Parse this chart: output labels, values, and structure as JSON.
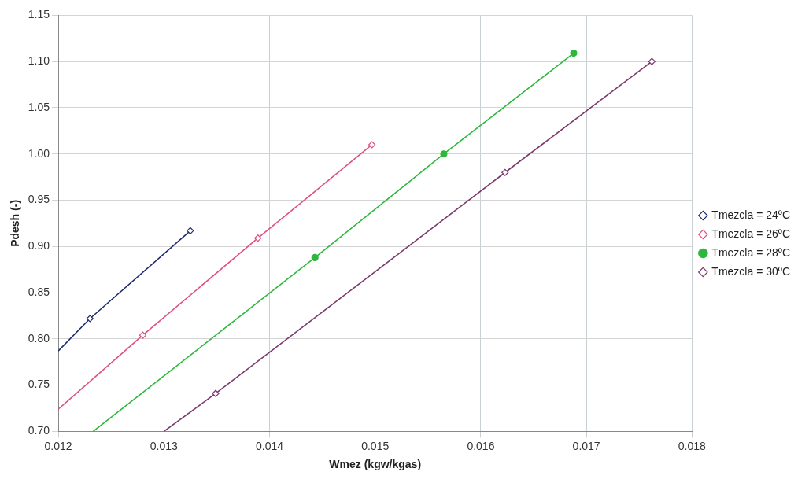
{
  "chart_data": {
    "type": "line",
    "xlabel": "Wmez (kgw/kgas)",
    "ylabel": "Pdesh (-)",
    "xlim": [
      0.012,
      0.018
    ],
    "xticks": [
      0.012,
      0.013,
      0.014,
      0.015,
      0.016,
      0.017,
      0.018
    ],
    "ylim": [
      0.7,
      1.15
    ],
    "yticks": [
      {
        "value": 0.7,
        "label": "0.70"
      },
      {
        "value": 0.75,
        "label": "0.75"
      },
      {
        "value": 0.8,
        "label": "0.80"
      },
      {
        "value": 0.85,
        "label": "0.85"
      },
      {
        "value": 0.9,
        "label": "0.90"
      },
      {
        "value": 0.95,
        "label": "0.95"
      },
      {
        "value": 1.0,
        "label": "1.00"
      },
      {
        "value": 1.05,
        "label": "1.05"
      },
      {
        "value": 1.1,
        "label": "1.10"
      },
      {
        "value": 1.15,
        "label": "1.15"
      }
    ],
    "grid": true,
    "legend": "right",
    "line_style": "solid",
    "series": [
      {
        "name": "Tmezcla = 24ºC",
        "color": "#1f2a6e",
        "marker": "diamond",
        "x": [
          0.012,
          0.0123,
          0.01325
        ],
        "values": [
          0.787,
          0.822,
          0.917
        ]
      },
      {
        "name": "Tmezcla = 26ºC",
        "color": "#e0507f",
        "marker": "diamond",
        "x": [
          0.012,
          0.0128,
          0.01389,
          0.01497
        ],
        "values": [
          0.724,
          0.804,
          0.909,
          1.01
        ]
      },
      {
        "name": "Tmezcla = 28ºC",
        "color": "#2db83d",
        "marker": "circle",
        "x": [
          0.01233,
          0.01443,
          0.01565,
          0.01688
        ],
        "values": [
          0.7,
          0.888,
          1.0,
          1.109
        ]
      },
      {
        "name": "Tmezcla = 30ºC",
        "color": "#7a3a6e",
        "marker": "diamond",
        "x": [
          0.013,
          0.01349,
          0.01623,
          0.01762
        ],
        "values": [
          0.7,
          0.741,
          0.98,
          1.1
        ]
      }
    ]
  }
}
